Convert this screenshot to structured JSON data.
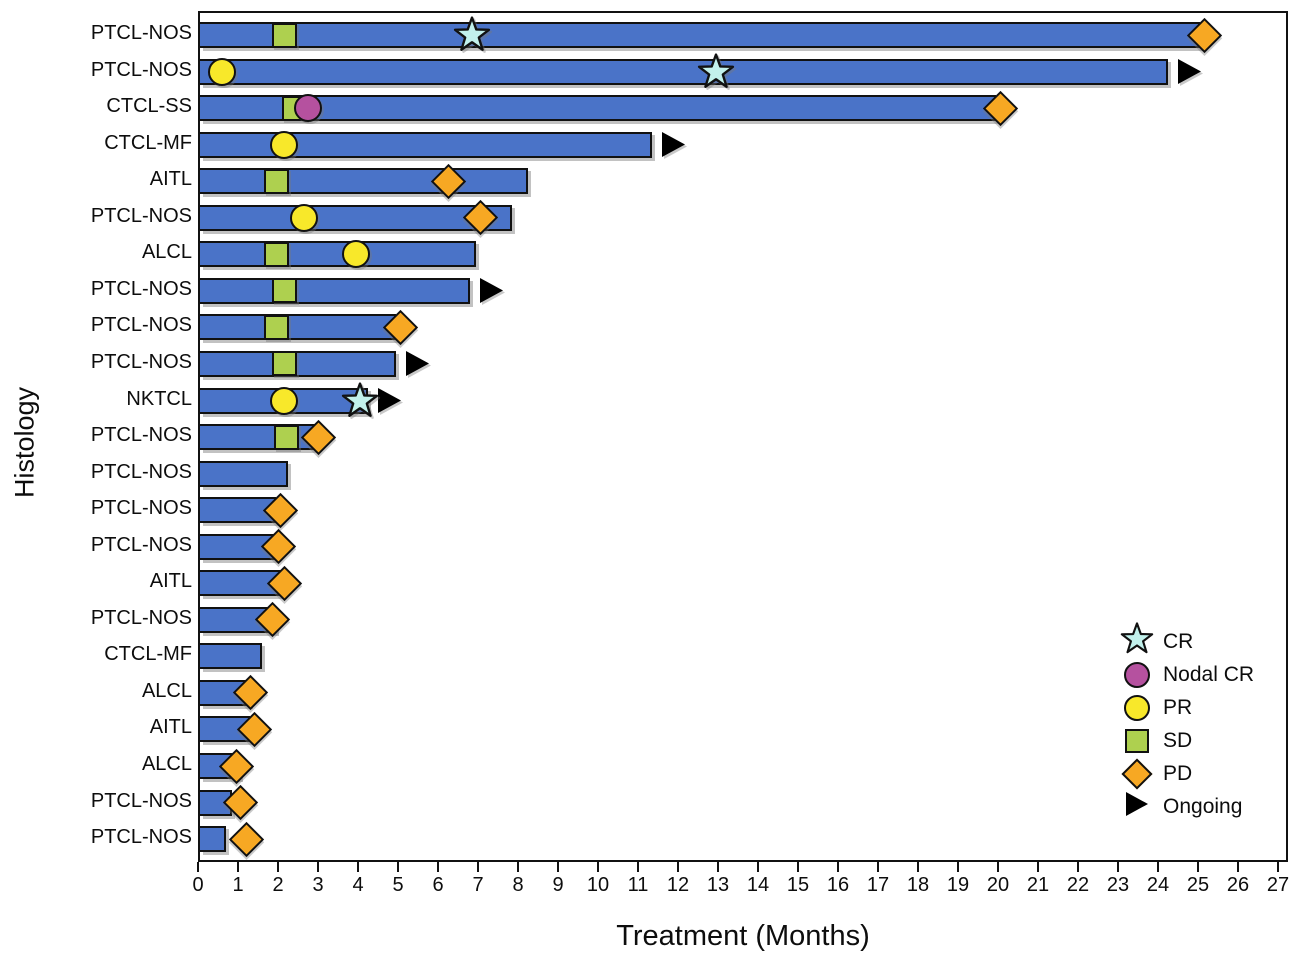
{
  "chart_data": {
    "type": "bar",
    "subtype": "swimmer-plot",
    "title": "",
    "xlabel": "Treatment (Months)",
    "ylabel": "Histology",
    "xlim": [
      0,
      27.3
    ],
    "x_ticks": [
      0,
      1,
      2,
      3,
      4,
      5,
      6,
      7,
      8,
      9,
      10,
      11,
      12,
      13,
      14,
      15,
      16,
      17,
      18,
      19,
      20,
      21,
      22,
      23,
      24,
      25,
      26,
      27
    ],
    "grid": false,
    "legend_position": "inside-bottom-right",
    "colors": {
      "bar_fill": "#4a73c8",
      "bar_border": "#111111",
      "cr_star": "#c2f1ec",
      "nodal_cr_circle": "#b5519f",
      "pr_circle": "#f8e82a",
      "sd_square": "#aed04f",
      "pd_diamond": "#f7a823",
      "ongoing_arrow": "#000000"
    },
    "legend": [
      {
        "label": "CR",
        "marker": "star"
      },
      {
        "label": "Nodal CR",
        "marker": "circle-purple"
      },
      {
        "label": "PR",
        "marker": "circle-yellow"
      },
      {
        "label": "SD",
        "marker": "square-green"
      },
      {
        "label": "PD",
        "marker": "diamond-orange"
      },
      {
        "label": "Ongoing",
        "marker": "arrow-black"
      }
    ],
    "rows": [
      {
        "histology": "PTCL-NOS",
        "duration_months": 25.0,
        "ongoing": false,
        "markers": [
          {
            "type": "SD",
            "month": 2.1
          },
          {
            "type": "CR",
            "month": 6.8
          },
          {
            "type": "PD",
            "month": 25.1
          }
        ]
      },
      {
        "histology": "PTCL-NOS",
        "duration_months": 24.2,
        "ongoing": true,
        "markers": [
          {
            "type": "PR",
            "month": 0.55
          },
          {
            "type": "CR",
            "month": 12.9
          }
        ]
      },
      {
        "histology": "CTCL-SS",
        "duration_months": 19.9,
        "ongoing": false,
        "markers": [
          {
            "type": "SD",
            "month": 2.35
          },
          {
            "type": "NodalCR",
            "month": 2.7
          },
          {
            "type": "PD",
            "month": 20.0
          }
        ]
      },
      {
        "histology": "CTCL-MF",
        "duration_months": 11.3,
        "ongoing": true,
        "markers": [
          {
            "type": "PR",
            "month": 2.1
          }
        ]
      },
      {
        "histology": "AITL",
        "duration_months": 8.2,
        "ongoing": false,
        "markers": [
          {
            "type": "SD",
            "month": 1.9
          },
          {
            "type": "PD",
            "month": 6.2
          }
        ]
      },
      {
        "histology": "PTCL-NOS",
        "duration_months": 7.8,
        "ongoing": false,
        "markers": [
          {
            "type": "PR",
            "month": 2.6
          },
          {
            "type": "PD",
            "month": 7.0
          }
        ]
      },
      {
        "histology": "ALCL",
        "duration_months": 6.9,
        "ongoing": false,
        "markers": [
          {
            "type": "SD",
            "month": 1.9
          },
          {
            "type": "PR",
            "month": 3.9
          }
        ]
      },
      {
        "histology": "PTCL-NOS",
        "duration_months": 6.75,
        "ongoing": true,
        "markers": [
          {
            "type": "SD",
            "month": 2.1
          }
        ]
      },
      {
        "histology": "PTCL-NOS",
        "duration_months": 4.9,
        "ongoing": false,
        "markers": [
          {
            "type": "SD",
            "month": 1.9
          },
          {
            "type": "PD",
            "month": 5.0
          }
        ]
      },
      {
        "histology": "PTCL-NOS",
        "duration_months": 4.9,
        "ongoing": true,
        "markers": [
          {
            "type": "SD",
            "month": 2.1
          }
        ]
      },
      {
        "histology": "NKTCL",
        "duration_months": 4.2,
        "ongoing": true,
        "markers": [
          {
            "type": "PR",
            "month": 2.1
          },
          {
            "type": "CR",
            "month": 4.0
          }
        ]
      },
      {
        "histology": "PTCL-NOS",
        "duration_months": 2.9,
        "ongoing": false,
        "markers": [
          {
            "type": "SD",
            "month": 2.15
          },
          {
            "type": "PD",
            "month": 2.95
          }
        ]
      },
      {
        "histology": "PTCL-NOS",
        "duration_months": 2.2,
        "ongoing": false,
        "markers": []
      },
      {
        "histology": "PTCL-NOS",
        "duration_months": 1.9,
        "ongoing": false,
        "markers": [
          {
            "type": "PD",
            "month": 2.0
          }
        ]
      },
      {
        "histology": "PTCL-NOS",
        "duration_months": 1.9,
        "ongoing": false,
        "markers": [
          {
            "type": "PD",
            "month": 1.95
          }
        ]
      },
      {
        "histology": "AITL",
        "duration_months": 2.1,
        "ongoing": false,
        "markers": [
          {
            "type": "PD",
            "month": 2.1
          }
        ]
      },
      {
        "histology": "PTCL-NOS",
        "duration_months": 1.9,
        "ongoing": false,
        "markers": [
          {
            "type": "PD",
            "month": 1.8
          }
        ]
      },
      {
        "histology": "CTCL-MF",
        "duration_months": 1.55,
        "ongoing": false,
        "markers": []
      },
      {
        "histology": "ALCL",
        "duration_months": 1.25,
        "ongoing": false,
        "markers": [
          {
            "type": "PD",
            "month": 1.25
          }
        ]
      },
      {
        "histology": "AITL",
        "duration_months": 1.25,
        "ongoing": false,
        "markers": [
          {
            "type": "PD",
            "month": 1.35
          }
        ]
      },
      {
        "histology": "ALCL",
        "duration_months": 1.0,
        "ongoing": false,
        "markers": [
          {
            "type": "PD",
            "month": 0.9
          }
        ]
      },
      {
        "histology": "PTCL-NOS",
        "duration_months": 0.8,
        "ongoing": false,
        "markers": [
          {
            "type": "PD",
            "month": 1.0
          }
        ]
      },
      {
        "histology": "PTCL-NOS",
        "duration_months": 0.65,
        "ongoing": false,
        "markers": [
          {
            "type": "PD",
            "month": 1.15
          }
        ]
      }
    ]
  }
}
